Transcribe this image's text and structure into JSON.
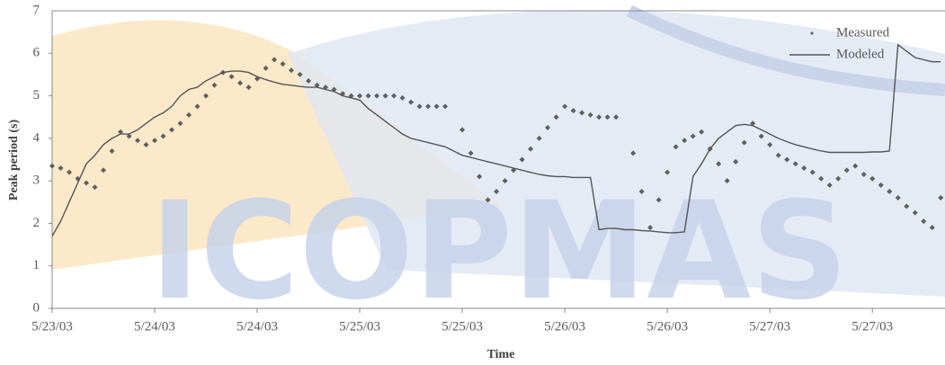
{
  "chart_data": {
    "type": "scatter-line",
    "watermark": "ICOPMAS",
    "x_label": "Time",
    "y_label": "Peak period (s)",
    "xlim": [
      0,
      104.5
    ],
    "ylim": [
      0,
      7
    ],
    "xticks": [
      {
        "value": 0,
        "label": "5/23/03"
      },
      {
        "value": 12,
        "label": "5/24/03"
      },
      {
        "value": 24,
        "label": "5/24/03"
      },
      {
        "value": 36,
        "label": "5/25/03"
      },
      {
        "value": 48,
        "label": "5/25/03"
      },
      {
        "value": 60,
        "label": "5/26/03"
      },
      {
        "value": 72,
        "label": "5/26/03"
      },
      {
        "value": 84,
        "label": "5/27/03"
      },
      {
        "value": 96,
        "label": "5/27/03"
      }
    ],
    "yticks": [
      0,
      1,
      2,
      3,
      4,
      5,
      6,
      7
    ],
    "grid": false,
    "legend": "upper right",
    "series": [
      {
        "name": "Measured",
        "kind": "markers",
        "color": "#5f5f5f",
        "x": [
          0,
          1,
          2,
          3,
          4,
          5,
          6,
          7,
          8,
          9,
          10,
          11,
          12,
          13,
          14,
          15,
          16,
          17,
          18,
          19,
          20,
          21,
          22,
          23,
          24,
          25,
          26,
          27,
          28,
          29,
          30,
          31,
          32,
          33,
          34,
          35,
          36,
          37,
          38,
          39,
          40,
          41,
          42,
          43,
          44,
          45,
          46,
          48,
          49,
          50,
          51,
          52,
          53,
          54,
          55,
          56,
          57,
          58,
          59,
          60,
          61,
          62,
          63,
          64,
          65,
          66,
          68,
          69,
          70,
          71,
          72,
          73,
          74,
          75,
          76,
          77,
          78,
          79,
          80,
          81,
          82,
          83,
          84,
          85,
          86,
          87,
          88,
          89,
          90,
          91,
          92,
          93,
          94,
          95,
          96,
          97,
          98,
          99,
          100,
          101,
          102,
          103,
          104
        ],
        "values": [
          3.35,
          3.3,
          3.2,
          3.05,
          2.95,
          2.85,
          3.25,
          3.7,
          4.15,
          4.05,
          3.95,
          3.85,
          3.95,
          4.05,
          4.2,
          4.35,
          4.55,
          4.75,
          5.0,
          5.25,
          5.55,
          5.45,
          5.3,
          5.2,
          5.4,
          5.65,
          5.85,
          5.75,
          5.6,
          5.5,
          5.35,
          5.25,
          5.2,
          5.15,
          5.05,
          5.0,
          5.0,
          5.0,
          5.0,
          5.0,
          5.0,
          4.95,
          4.85,
          4.75,
          4.75,
          4.75,
          4.75,
          4.2,
          3.65,
          3.1,
          2.55,
          2.75,
          3.0,
          3.25,
          3.5,
          3.75,
          4.0,
          4.25,
          4.5,
          4.75,
          4.65,
          4.6,
          4.55,
          4.5,
          4.5,
          4.5,
          3.65,
          2.75,
          1.9,
          2.55,
          3.2,
          3.8,
          3.95,
          4.05,
          4.15,
          3.75,
          3.4,
          3.0,
          3.45,
          3.9,
          4.35,
          4.05,
          3.85,
          3.6,
          3.5,
          3.4,
          3.3,
          3.2,
          3.05,
          2.9,
          3.05,
          3.25,
          3.35,
          3.15,
          3.05,
          2.9,
          2.75,
          2.6,
          2.4,
          2.25,
          2.05,
          1.9,
          2.6
        ]
      },
      {
        "name": "Modeled",
        "kind": "line",
        "color": "#555555",
        "x": [
          0,
          1,
          2,
          3,
          4,
          5,
          6,
          7,
          8,
          9,
          10,
          11,
          12,
          13,
          14,
          15,
          16,
          17,
          18,
          19,
          20,
          21,
          22,
          23,
          24,
          25,
          26,
          27,
          28,
          29,
          30,
          31,
          32,
          33,
          34,
          35,
          36,
          37,
          38,
          39,
          40,
          41,
          42,
          43,
          44,
          45,
          46,
          47,
          48,
          49,
          50,
          51,
          52,
          53,
          54,
          55,
          56,
          57,
          58,
          59,
          60,
          61,
          62,
          63,
          64,
          65,
          66,
          67,
          68,
          69,
          70,
          71,
          72,
          73,
          74,
          75,
          76,
          77,
          78,
          79,
          80,
          81,
          82,
          83,
          84,
          85,
          86,
          87,
          88,
          89,
          90,
          91,
          92,
          93,
          94,
          95,
          96,
          97,
          98,
          99,
          100,
          101,
          102,
          103,
          104
        ],
        "values": [
          1.7,
          2.05,
          2.5,
          2.95,
          3.4,
          3.6,
          3.85,
          4.0,
          4.1,
          4.1,
          4.2,
          4.35,
          4.5,
          4.6,
          4.75,
          5.0,
          5.15,
          5.2,
          5.35,
          5.45,
          5.55,
          5.58,
          5.58,
          5.55,
          5.45,
          5.38,
          5.32,
          5.27,
          5.25,
          5.22,
          5.2,
          5.2,
          5.15,
          5.1,
          5.0,
          4.95,
          4.9,
          4.7,
          4.55,
          4.4,
          4.25,
          4.1,
          4.0,
          3.95,
          3.9,
          3.85,
          3.8,
          3.7,
          3.6,
          3.55,
          3.5,
          3.45,
          3.4,
          3.35,
          3.3,
          3.25,
          3.2,
          3.15,
          3.12,
          3.1,
          3.1,
          3.08,
          3.08,
          3.08,
          1.85,
          1.88,
          1.88,
          1.85,
          1.85,
          1.83,
          1.82,
          1.8,
          1.78,
          1.78,
          1.8,
          3.1,
          3.4,
          3.75,
          4.0,
          4.15,
          4.3,
          4.33,
          4.3,
          4.2,
          4.1,
          4.0,
          3.92,
          3.85,
          3.8,
          3.75,
          3.7,
          3.67,
          3.67,
          3.67,
          3.67,
          3.67,
          3.68,
          3.68,
          3.7,
          6.2,
          6.05,
          5.9,
          5.85,
          5.8,
          5.8
        ]
      }
    ]
  }
}
